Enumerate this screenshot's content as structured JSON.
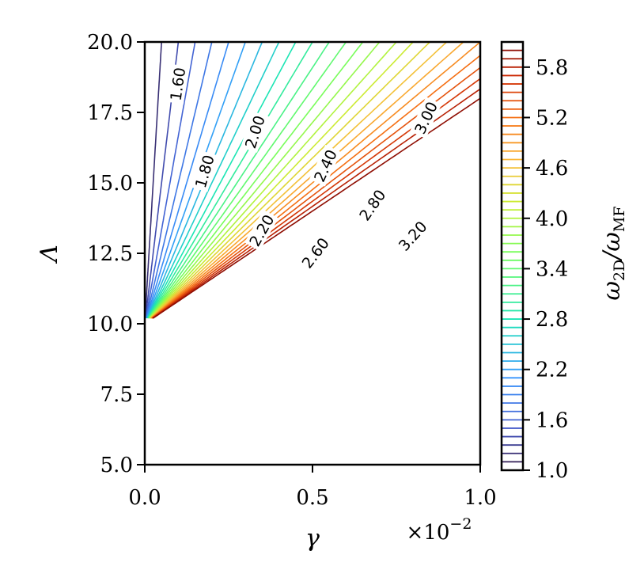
{
  "chart_data": {
    "type": "contour",
    "xlabel": "γ",
    "ylabel": "Λ",
    "x_multiplier_label": "×10",
    "x_multiplier_exponent": "−2",
    "xlim": [
      0.0,
      1.0
    ],
    "ylim": [
      5.0,
      20.0
    ],
    "x_ticks": [
      "0.0",
      "0.5",
      "1.0"
    ],
    "y_ticks": [
      "5.0",
      "7.5",
      "10.0",
      "12.5",
      "15.0",
      "17.5",
      "20.0"
    ],
    "x_tick_values": [
      0.0,
      0.5,
      1.0
    ],
    "y_tick_values": [
      5.0,
      7.5,
      10.0,
      12.5,
      15.0,
      17.5,
      20.0
    ],
    "colorbar": {
      "label_main": "ω",
      "label_sub_num": "2D",
      "label_sep": "/ω",
      "label_sub_den": "MF",
      "range": [
        1.0,
        6.1
      ],
      "ticks": [
        "1.0",
        "1.6",
        "2.2",
        "2.8",
        "3.4",
        "4.0",
        "4.6",
        "5.2",
        "5.8"
      ],
      "tick_values": [
        1.0,
        1.6,
        2.2,
        2.8,
        3.4,
        4.0,
        4.6,
        5.2,
        5.8
      ]
    },
    "contour_levels": [
      1.1,
      1.2,
      1.3,
      1.4,
      1.5,
      1.6,
      1.7,
      1.8,
      1.9,
      2.0,
      2.1,
      2.2,
      2.3,
      2.4,
      2.5,
      2.6,
      2.7,
      2.8,
      2.9,
      3.0,
      3.1,
      3.2,
      3.3,
      3.4,
      3.5,
      3.6,
      3.7,
      3.8,
      3.9,
      4.0,
      4.1,
      4.2,
      4.3,
      4.4,
      4.5,
      4.6,
      4.7,
      4.8,
      4.9,
      5.0,
      5.1,
      5.2,
      5.3,
      5.4,
      5.5,
      5.6,
      5.7,
      5.8,
      5.9,
      6.0
    ],
    "contour_curve_levels": [
      1.2,
      1.4,
      1.6,
      1.8,
      2.0,
      2.2,
      2.4,
      2.6,
      2.8,
      3.0,
      3.2,
      3.4,
      3.6,
      3.8,
      4.0,
      4.2,
      4.4,
      4.6,
      4.8,
      5.0,
      5.2,
      5.4,
      5.6,
      5.8,
      6.0
    ],
    "threshold_lambda": 10.2,
    "contour_labels": [
      {
        "text": "1.60",
        "level": 1.6,
        "x": 0.1,
        "y": 18.5,
        "angle": -82
      },
      {
        "text": "1.80",
        "level": 1.8,
        "x": 0.18,
        "y": 15.4,
        "angle": -74
      },
      {
        "text": "2.00",
        "level": 2.0,
        "x": 0.33,
        "y": 16.8,
        "angle": -72
      },
      {
        "text": "2.20",
        "level": 2.2,
        "x": 0.35,
        "y": 13.3,
        "angle": -60
      },
      {
        "text": "2.40",
        "level": 2.4,
        "x": 0.54,
        "y": 15.6,
        "angle": -65
      },
      {
        "text": "2.60",
        "level": 2.6,
        "x": 0.51,
        "y": 12.5,
        "angle": -52
      },
      {
        "text": "2.80",
        "level": 2.8,
        "x": 0.68,
        "y": 14.2,
        "angle": -55
      },
      {
        "text": "3.00",
        "level": 3.0,
        "x": 0.84,
        "y": 17.3,
        "angle": -65
      },
      {
        "text": "3.20",
        "level": 3.2,
        "x": 0.8,
        "y": 13.1,
        "angle": -48
      }
    ]
  }
}
